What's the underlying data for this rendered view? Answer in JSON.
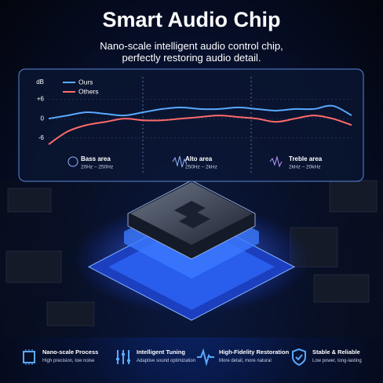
{
  "header": {
    "title": "Smart Audio Chip",
    "subtitle_lines": [
      "Nano-scale intelligent audio control chip,",
      "perfectly restoring audio detail."
    ]
  },
  "chart_data": {
    "type": "line",
    "y_label": "dB",
    "x": [
      0,
      1,
      2,
      3,
      4,
      5,
      6,
      7,
      8,
      9,
      10,
      11,
      12,
      13,
      14,
      15,
      16
    ],
    "xlim": [
      0,
      16
    ],
    "ylim": [
      -9,
      13
    ],
    "yticks": [
      {
        "value": 6,
        "label": "+6"
      },
      0,
      -6
    ],
    "grid": true,
    "series": [
      {
        "name": "Ours",
        "color": "#5aa9ff",
        "values": [
          0,
          1,
          2,
          1.5,
          1,
          2,
          3,
          3.5,
          3,
          3,
          3.5,
          3,
          2.5,
          3,
          3,
          4,
          1
        ]
      },
      {
        "name": "Others",
        "color": "#ff6b6b",
        "values": [
          -8,
          -4,
          -2,
          -1,
          0,
          -0.5,
          -0.5,
          0,
          0.5,
          1,
          0.5,
          0,
          -1,
          0,
          1,
          0,
          -2
        ]
      }
    ],
    "bands": [
      {
        "name": "Bass area",
        "range": "20Hz – 250Hz"
      },
      {
        "name": "Alto area",
        "range": "250Hz – 2kHz"
      },
      {
        "name": "Treble area",
        "range": "2kHz – 20kHz"
      }
    ]
  },
  "features": [
    {
      "title": "Nano-scale Process",
      "desc": "High precision, low noise"
    },
    {
      "title": "Intelligent Tuning",
      "desc": "Adaptive sound optimization"
    },
    {
      "title": "High-Fidelity Restoration",
      "desc": "More detail, more natural"
    },
    {
      "title": "Stable & Reliable",
      "desc": "Low power, long-lasting"
    }
  ]
}
